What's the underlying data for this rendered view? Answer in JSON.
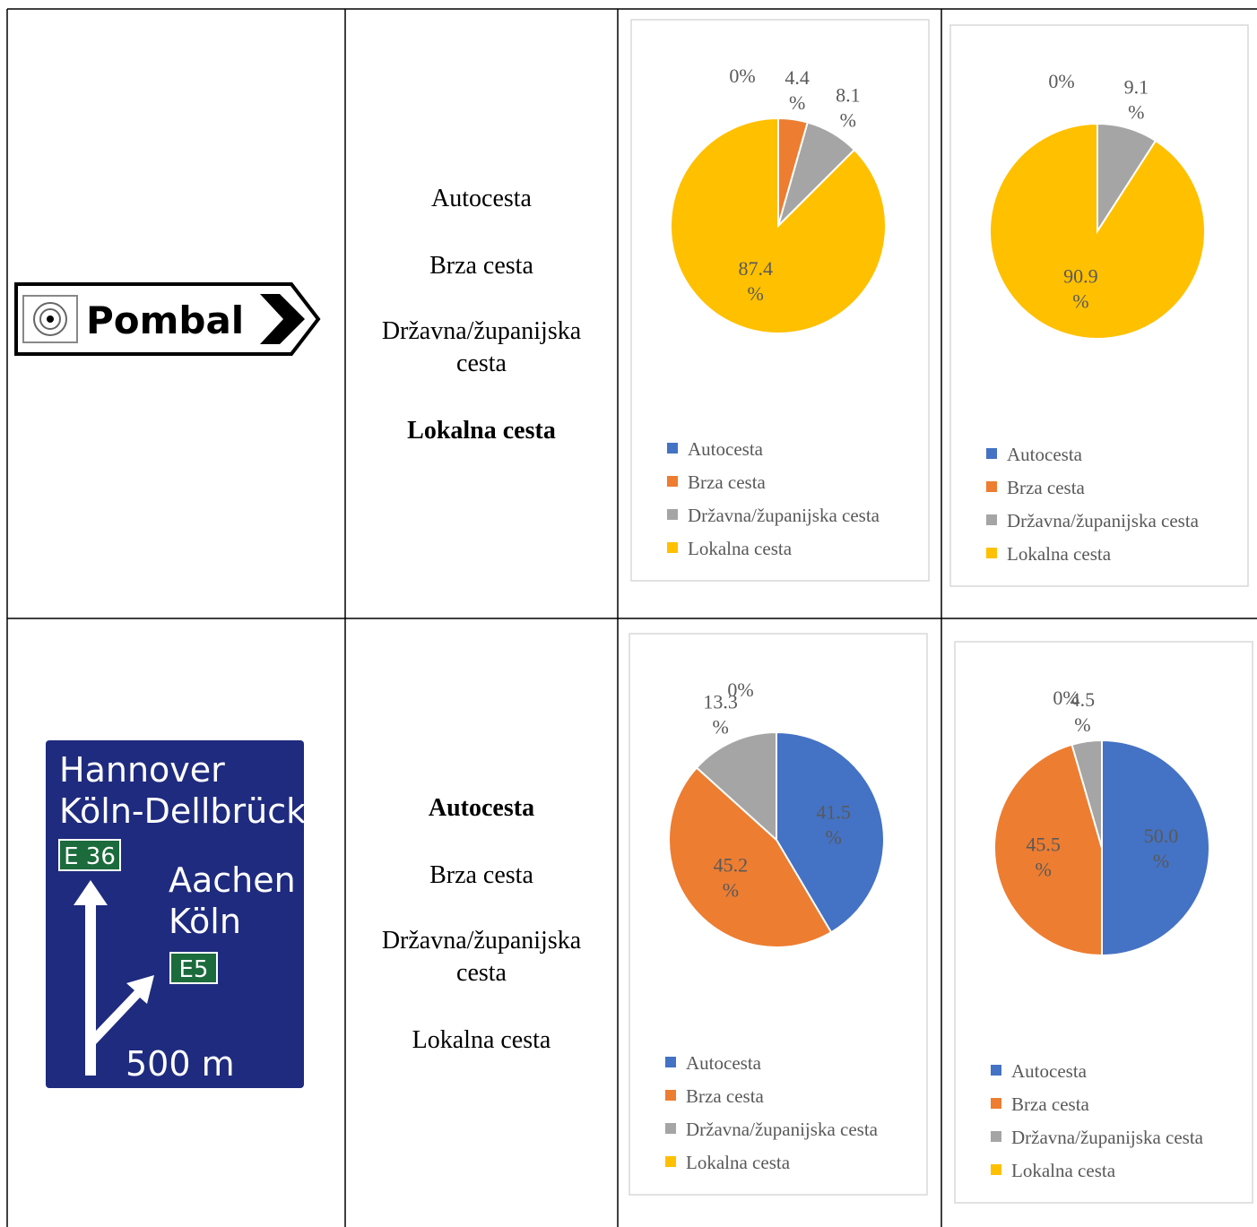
{
  "table": {
    "rows": [
      {
        "sign": {
          "texts": [
            "Pombal"
          ]
        },
        "options": [
          "Autocesta",
          "Brza cesta",
          "Državna/županijska cesta",
          "Lokalna cesta"
        ],
        "highlighted": 3,
        "charts": [
          {
            "type": "pie",
            "categories": [
              "Autocesta",
              "Brza cesta",
              "Državna/županijska cesta",
              "Lokalna cesta"
            ],
            "values": [
              0,
              4.4,
              8.1,
              87.4
            ],
            "value_labels": [
              "0%",
              "4.4 %",
              "8.1 %",
              "87.4 %"
            ],
            "colors": [
              "#4472c4",
              "#ed7d31",
              "#a5a5a5",
              "#ffc000"
            ]
          },
          {
            "type": "pie",
            "categories": [
              "Autocesta",
              "Brza cesta",
              "Državna/županijska cesta",
              "Lokalna cesta"
            ],
            "values": [
              0,
              0,
              9.1,
              90.9
            ],
            "value_labels": [
              "0%",
              null,
              "9.1 %",
              "90.9 %"
            ],
            "colors": [
              "#4472c4",
              "#ed7d31",
              "#a5a5a5",
              "#ffc000"
            ]
          }
        ]
      },
      {
        "sign": {
          "texts": [
            "Hannover",
            "Köln-Dellbrück",
            "Aachen",
            "Köln",
            "500 m"
          ],
          "route_numbers": [
            "E 36",
            "E5"
          ]
        },
        "options": [
          "Autocesta",
          "Brza cesta",
          "Državna/županijska cesta",
          "Lokalna cesta"
        ],
        "highlighted": 0,
        "charts": [
          {
            "type": "pie",
            "categories": [
              "Autocesta",
              "Brza cesta",
              "Državna/županijska cesta",
              "Lokalna cesta"
            ],
            "values": [
              41.5,
              45.2,
              13.3,
              0
            ],
            "value_labels": [
              "41.5 %",
              "45.2 %",
              "13.3 %",
              "0%"
            ],
            "colors": [
              "#4472c4",
              "#ed7d31",
              "#a5a5a5",
              "#ffc000"
            ]
          },
          {
            "type": "pie",
            "categories": [
              "Autocesta",
              "Brza cesta",
              "Državna/županijska cesta",
              "Lokalna cesta"
            ],
            "values": [
              50,
              45.5,
              4.5,
              0
            ],
            "value_labels": [
              "50.0 %",
              "45.5 %",
              "4.5 %",
              "0%"
            ],
            "colors": [
              "#4472c4",
              "#ed7d31",
              "#a5a5a5",
              "#ffc000"
            ]
          }
        ]
      }
    ]
  }
}
